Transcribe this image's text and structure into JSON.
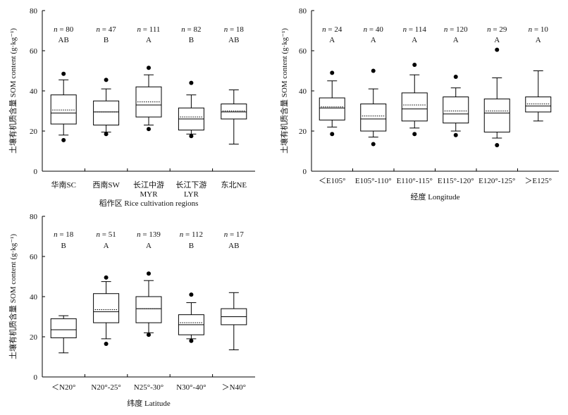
{
  "chart_data": [
    {
      "type": "box",
      "ylabel": "土壤有机质含量 SOM content (g·kg⁻¹)",
      "xlabel": "稻作区 Rice cultivation regions",
      "ylim": [
        0,
        80
      ],
      "yticks": [
        "0",
        "20",
        "40",
        "60",
        "80"
      ],
      "categories": [
        {
          "line1": "华南SC",
          "line2": ""
        },
        {
          "line1": "西南SW",
          "line2": ""
        },
        {
          "line1": "长江中游",
          "line2": "MYR"
        },
        {
          "line1": "长江下游",
          "line2": "LYR"
        },
        {
          "line1": "东北NE",
          "line2": ""
        }
      ],
      "n_labels": [
        "n = 80",
        "n = 47",
        "n = 111",
        "n = 82",
        "n = 18"
      ],
      "letters": [
        "AB",
        "B",
        "A",
        "B",
        "AB"
      ],
      "boxes": [
        {
          "whisker_low": 18,
          "q1": 23.5,
          "median": 29,
          "mean": 30.5,
          "q3": 38,
          "whisker_high": 45.5,
          "outliers": [
            15.5,
            48.5
          ]
        },
        {
          "whisker_low": 19.5,
          "q1": 23,
          "median": 29.5,
          "mean": 29.5,
          "q3": 35,
          "whisker_high": 41,
          "outliers": [
            18.5,
            45.5
          ]
        },
        {
          "whisker_low": 23,
          "q1": 27,
          "median": 33,
          "mean": 34.5,
          "q3": 42,
          "whisker_high": 48,
          "outliers": [
            21,
            51.5
          ]
        },
        {
          "whisker_low": 18.5,
          "q1": 20.5,
          "median": 26,
          "mean": 27,
          "q3": 31.5,
          "whisker_high": 38,
          "outliers": [
            17.5,
            44
          ]
        },
        {
          "whisker_low": 13.5,
          "q1": 26,
          "median": 29.5,
          "mean": 30,
          "q3": 33.5,
          "whisker_high": 40.5,
          "outliers": []
        }
      ]
    },
    {
      "type": "box",
      "ylabel": "土壤有机质含量 SOM content (g·kg⁻¹)",
      "xlabel": "经度 Longitude",
      "ylim": [
        0,
        80
      ],
      "yticks": [
        "0",
        "20",
        "40",
        "60",
        "80"
      ],
      "categories": [
        {
          "line1": "＜E105°",
          "line2": ""
        },
        {
          "line1": "E105°-110°",
          "line2": ""
        },
        {
          "line1": "E110°-115°",
          "line2": ""
        },
        {
          "line1": "E115°-120°",
          "line2": ""
        },
        {
          "line1": "E120°-125°",
          "line2": ""
        },
        {
          "line1": "＞E125°",
          "line2": ""
        }
      ],
      "n_labels": [
        "n = 24",
        "n = 40",
        "n = 114",
        "n = 120",
        "n = 29",
        "n = 10"
      ],
      "letters": [
        "A",
        "A",
        "A",
        "A",
        "A",
        "A"
      ],
      "boxes": [
        {
          "whisker_low": 22,
          "q1": 25.5,
          "median": 31.5,
          "mean": 32,
          "q3": 36.5,
          "whisker_high": 45,
          "outliers": [
            18.5,
            49
          ]
        },
        {
          "whisker_low": 17,
          "q1": 20,
          "median": 26,
          "mean": 27.5,
          "q3": 33.5,
          "whisker_high": 41,
          "outliers": [
            13.5,
            50
          ]
        },
        {
          "whisker_low": 21.5,
          "q1": 25,
          "median": 31,
          "mean": 33,
          "q3": 39,
          "whisker_high": 48,
          "outliers": [
            18.5,
            53
          ]
        },
        {
          "whisker_low": 20,
          "q1": 24,
          "median": 28.5,
          "mean": 30,
          "q3": 37,
          "whisker_high": 41.5,
          "outliers": [
            18,
            47
          ]
        },
        {
          "whisker_low": 16.5,
          "q1": 19.5,
          "median": 29,
          "mean": 30,
          "q3": 36,
          "whisker_high": 46.5,
          "outliers": [
            13,
            60.5
          ]
        },
        {
          "whisker_low": 25,
          "q1": 29.5,
          "median": 32.5,
          "mean": 33.5,
          "q3": 37,
          "whisker_high": 50,
          "outliers": []
        }
      ]
    },
    {
      "type": "box",
      "ylabel": "土壤有机质含量 SOM content (g·kg⁻¹)",
      "xlabel": "纬度 Latitude",
      "ylim": [
        0,
        80
      ],
      "yticks": [
        "0",
        "20",
        "40",
        "60",
        "80"
      ],
      "categories": [
        {
          "line1": "＜N20°",
          "line2": ""
        },
        {
          "line1": "N20°-25°",
          "line2": ""
        },
        {
          "line1": "N25°-30°",
          "line2": ""
        },
        {
          "line1": "N30°-40°",
          "line2": ""
        },
        {
          "line1": "＞N40°",
          "line2": ""
        }
      ],
      "n_labels": [
        "n = 18",
        "n = 51",
        "n = 139",
        "n = 112",
        "n = 17"
      ],
      "letters": [
        "B",
        "A",
        "A",
        "B",
        "AB"
      ],
      "boxes": [
        {
          "whisker_low": 12,
          "q1": 19.5,
          "median": 23.5,
          "mean": 23.5,
          "q3": 29,
          "whisker_high": 30.5,
          "outliers": []
        },
        {
          "whisker_low": 19,
          "q1": 27,
          "median": 32.5,
          "mean": 33.5,
          "q3": 41.5,
          "whisker_high": 47.5,
          "outliers": [
            16.5,
            49.5
          ]
        },
        {
          "whisker_low": 22,
          "q1": 27,
          "median": 34,
          "mean": 34,
          "q3": 40,
          "whisker_high": 48,
          "outliers": [
            21,
            51.5
          ]
        },
        {
          "whisker_low": 19,
          "q1": 21,
          "median": 26,
          "mean": 27,
          "q3": 31,
          "whisker_high": 37,
          "outliers": [
            18,
            41
          ]
        },
        {
          "whisker_low": 13.5,
          "q1": 26,
          "median": 30,
          "mean": 30,
          "q3": 34,
          "whisker_high": 42,
          "outliers": []
        }
      ]
    }
  ]
}
